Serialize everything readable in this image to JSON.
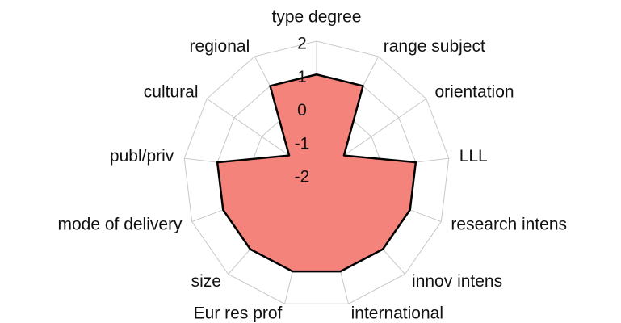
{
  "chart_data": {
    "type": "radar",
    "categories": [
      "type degree",
      "range subject",
      "orientation",
      "LLL",
      "research intens",
      "innov intens",
      "international",
      "Eur res prof",
      "size",
      "mode of delivery",
      "publ/priv",
      "cultural",
      "regional"
    ],
    "values": [
      1,
      1,
      -1,
      1,
      1,
      1,
      1,
      1,
      1,
      1,
      1,
      -1,
      1
    ],
    "color": "#f4847b",
    "ylim": [
      -2,
      2
    ],
    "yticks": [
      -2,
      -1,
      0,
      1,
      2
    ],
    "grid": true
  }
}
